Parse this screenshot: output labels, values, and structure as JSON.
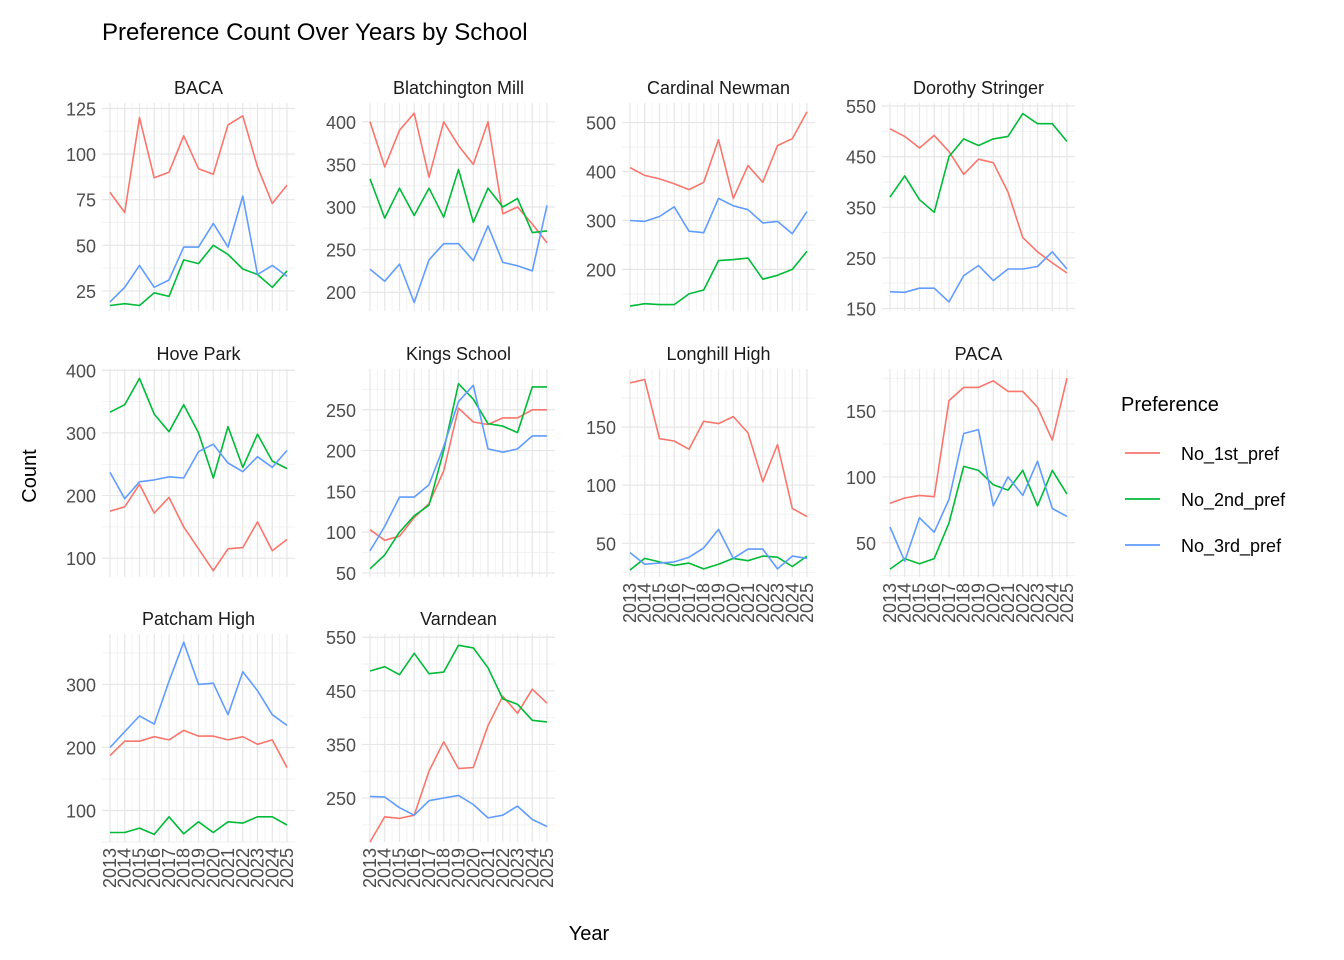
{
  "chart_data": {
    "type": "line",
    "title": "Preference Count Over Years by School",
    "xlabel": "Year",
    "ylabel": "Count",
    "legend": {
      "title": "Preference",
      "placement": "right",
      "entries": [
        "No_1st_pref",
        "No_2nd_pref",
        "No_3rd_pref"
      ]
    },
    "grid": true,
    "x": [
      2013,
      2014,
      2015,
      2016,
      2017,
      2018,
      2019,
      2020,
      2021,
      2022,
      2023,
      2024,
      2025
    ],
    "x_tick_labels": [
      "2013",
      "2014",
      "2015",
      "2016",
      "2017",
      "2018",
      "2019",
      "2020",
      "2021",
      "2022",
      "2023",
      "2024",
      "2025"
    ],
    "colors": {
      "No_1st_pref": "#F8766D",
      "No_2nd_pref": "#00BA38",
      "No_3rd_pref": "#619CFF"
    },
    "facets": [
      {
        "name": "BACA",
        "ylim": [
          14,
          128
        ],
        "yticks": [
          25,
          50,
          75,
          100,
          125
        ],
        "series": [
          {
            "name": "No_1st_pref",
            "values": [
              79,
              68,
              120,
              87,
              90,
              110,
              92,
              89,
              116,
              121,
              93,
              73,
              83
            ]
          },
          {
            "name": "No_2nd_pref",
            "values": [
              17,
              18,
              17,
              24,
              22,
              42,
              40,
              50,
              45,
              37,
              34,
              27,
              36
            ]
          },
          {
            "name": "No_3rd_pref",
            "values": [
              19,
              27,
              39,
              27,
              31,
              49,
              49,
              62,
              49,
              77,
              34,
              39,
              33
            ]
          }
        ]
      },
      {
        "name": "Blatchington Mill",
        "ylim": [
          178,
          422
        ],
        "yticks": [
          200,
          250,
          300,
          350,
          400
        ],
        "series": [
          {
            "name": "No_1st_pref",
            "values": [
              400,
              347,
              390,
              410,
              335,
              400,
              372,
              350,
              400,
              292,
              300,
              280,
              258
            ]
          },
          {
            "name": "No_2nd_pref",
            "values": [
              333,
              287,
              322,
              290,
              322,
              288,
              344,
              282,
              322,
              300,
              310,
              270,
              272
            ]
          },
          {
            "name": "No_3rd_pref",
            "values": [
              227,
              213,
              233,
              188,
              238,
              257,
              257,
              237,
              278,
              235,
              231,
              225,
              302
            ]
          }
        ]
      },
      {
        "name": "Cardinal Newman",
        "ylim": [
          115,
          540
        ],
        "yticks": [
          200,
          300,
          400,
          500
        ],
        "series": [
          {
            "name": "No_1st_pref",
            "values": [
              408,
              392,
              385,
              375,
              363,
              378,
              465,
              345,
              412,
              378,
              453,
              467,
              522
            ]
          },
          {
            "name": "No_2nd_pref",
            "values": [
              125,
              130,
              128,
              128,
              150,
              158,
              218,
              220,
              223,
              180,
              188,
              200,
              237
            ]
          },
          {
            "name": "No_3rd_pref",
            "values": [
              300,
              298,
              308,
              328,
              278,
              275,
              345,
              330,
              322,
              295,
              298,
              273,
              318
            ]
          }
        ]
      },
      {
        "name": "Dorothy Stringer",
        "ylim": [
          145,
          556
        ],
        "yticks": [
          150,
          250,
          350,
          450,
          550
        ],
        "series": [
          {
            "name": "No_1st_pref",
            "values": [
              505,
              490,
              467,
              492,
              460,
              415,
              445,
              438,
              380,
              290,
              262,
              240,
              220
            ]
          },
          {
            "name": "No_2nd_pref",
            "values": [
              370,
              412,
              365,
              340,
              450,
              485,
              472,
              485,
              490,
              535,
              515,
              515,
              480
            ]
          },
          {
            "name": "No_3rd_pref",
            "values": [
              183,
              182,
              190,
              190,
              163,
              215,
              235,
              205,
              228,
              228,
              233,
              262,
              228
            ]
          }
        ]
      },
      {
        "name": "Hove Park",
        "ylim": [
          70,
          402
        ],
        "yticks": [
          100,
          200,
          300,
          400
        ],
        "series": [
          {
            "name": "No_1st_pref",
            "values": [
              175,
              182,
              218,
              172,
              197,
              150,
              115,
              80,
              115,
              117,
              158,
              112,
              130
            ]
          },
          {
            "name": "No_2nd_pref",
            "values": [
              333,
              345,
              387,
              330,
              302,
              345,
              300,
              228,
              310,
              245,
              298,
              255,
              243
            ]
          },
          {
            "name": "No_3rd_pref",
            "values": [
              237,
              195,
              222,
              225,
              230,
              228,
              270,
              282,
              252,
              238,
              262,
              245,
              272
            ]
          }
        ]
      },
      {
        "name": "Kings School",
        "ylim": [
          45,
          300
        ],
        "yticks": [
          50,
          100,
          150,
          200,
          250
        ],
        "series": [
          {
            "name": "No_1st_pref",
            "values": [
              103,
              90,
              95,
              118,
              135,
              175,
              252,
              235,
              232,
              240,
              240,
              250,
              250
            ]
          },
          {
            "name": "No_2nd_pref",
            "values": [
              55,
              72,
              100,
              120,
              133,
              200,
              282,
              263,
              233,
              230,
              222,
              278,
              278
            ]
          },
          {
            "name": "No_3rd_pref",
            "values": [
              77,
              107,
              143,
              143,
              158,
              205,
              260,
              280,
              202,
              198,
              202,
              218,
              218
            ]
          }
        ]
      },
      {
        "name": "Longhill High",
        "ylim": [
          21,
          200
        ],
        "yticks": [
          50,
          100,
          150
        ],
        "series": [
          {
            "name": "No_1st_pref",
            "values": [
              188,
              191,
              140,
              138,
              131,
              155,
              153,
              159,
              145,
              103,
              135,
              80,
              73
            ]
          },
          {
            "name": "No_2nd_pref",
            "values": [
              27,
              37,
              34,
              31,
              33,
              28,
              32,
              37,
              35,
              39,
              38,
              30,
              39
            ]
          },
          {
            "name": "No_3rd_pref",
            "values": [
              42,
              32,
              33,
              34,
              38,
              46,
              62,
              37,
              45,
              45,
              28,
              39,
              37
            ]
          }
        ]
      },
      {
        "name": "PACA",
        "ylim": [
          24,
          182
        ],
        "yticks": [
          50,
          100,
          150
        ],
        "series": [
          {
            "name": "No_1st_pref",
            "values": [
              80,
              84,
              86,
              85,
              158,
              168,
              168,
              173,
              165,
              165,
              153,
              128,
              175
            ]
          },
          {
            "name": "No_2nd_pref",
            "values": [
              30,
              38,
              34,
              38,
              65,
              108,
              105,
              94,
              90,
              105,
              78,
              105,
              87
            ]
          },
          {
            "name": "No_3rd_pref",
            "values": [
              62,
              36,
              69,
              58,
              83,
              133,
              136,
              78,
              100,
              86,
              112,
              76,
              70
            ]
          }
        ]
      },
      {
        "name": "Patcham High",
        "ylim": [
          50,
          380
        ],
        "yticks": [
          100,
          200,
          300
        ],
        "series": [
          {
            "name": "No_1st_pref",
            "values": [
              187,
              210,
              210,
              217,
              212,
              227,
              218,
              218,
              212,
              217,
              205,
              212,
              168
            ]
          },
          {
            "name": "No_2nd_pref",
            "values": [
              65,
              65,
              72,
              62,
              90,
              63,
              82,
              65,
              82,
              80,
              90,
              90,
              77
            ]
          },
          {
            "name": "No_3rd_pref",
            "values": [
              200,
              225,
              250,
              237,
              305,
              367,
              300,
              302,
              252,
              320,
              290,
              252,
              235
            ]
          }
        ]
      },
      {
        "name": "Varndean",
        "ylim": [
          168,
          556
        ],
        "yticks": [
          250,
          350,
          450,
          550
        ],
        "series": [
          {
            "name": "No_1st_pref",
            "values": [
              168,
              215,
              212,
              218,
              300,
              355,
              305,
              307,
              385,
              440,
              408,
              453,
              427
            ]
          },
          {
            "name": "No_2nd_pref",
            "values": [
              487,
              495,
              480,
              520,
              482,
              485,
              535,
              530,
              493,
              435,
              425,
              395,
              392
            ]
          },
          {
            "name": "No_3rd_pref",
            "values": [
              253,
              252,
              232,
              218,
              245,
              250,
              255,
              238,
              213,
              218,
              235,
              210,
              197
            ]
          }
        ]
      }
    ]
  }
}
